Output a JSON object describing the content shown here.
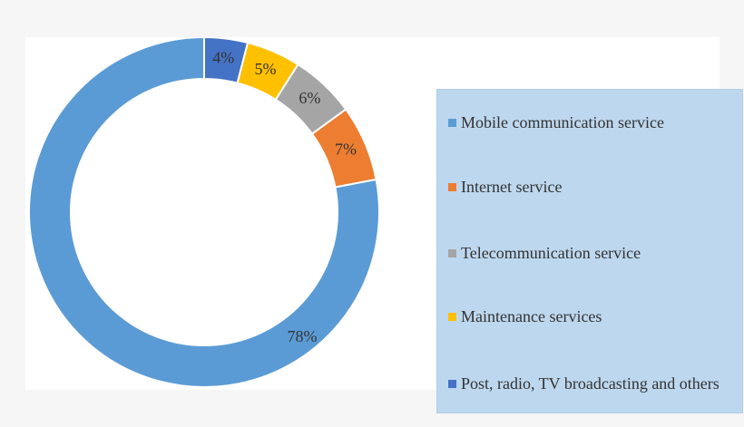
{
  "chart_data": {
    "type": "pie",
    "style": "donut",
    "title": "",
    "legend_position": "right",
    "series": [
      {
        "categories": [
          "Mobile communication service",
          "Internet service",
          "Telecommunication service",
          "Maintenance services",
          "Post, radio, TV broadcasting and others"
        ],
        "values": [
          78,
          7,
          6,
          5,
          4
        ],
        "labels": [
          "78%",
          "7%",
          "6%",
          "5%",
          "4%"
        ],
        "colors": [
          "#5b9bd5",
          "#ed7d31",
          "#a5a5a5",
          "#ffc000",
          "#4472c4"
        ]
      }
    ]
  }
}
